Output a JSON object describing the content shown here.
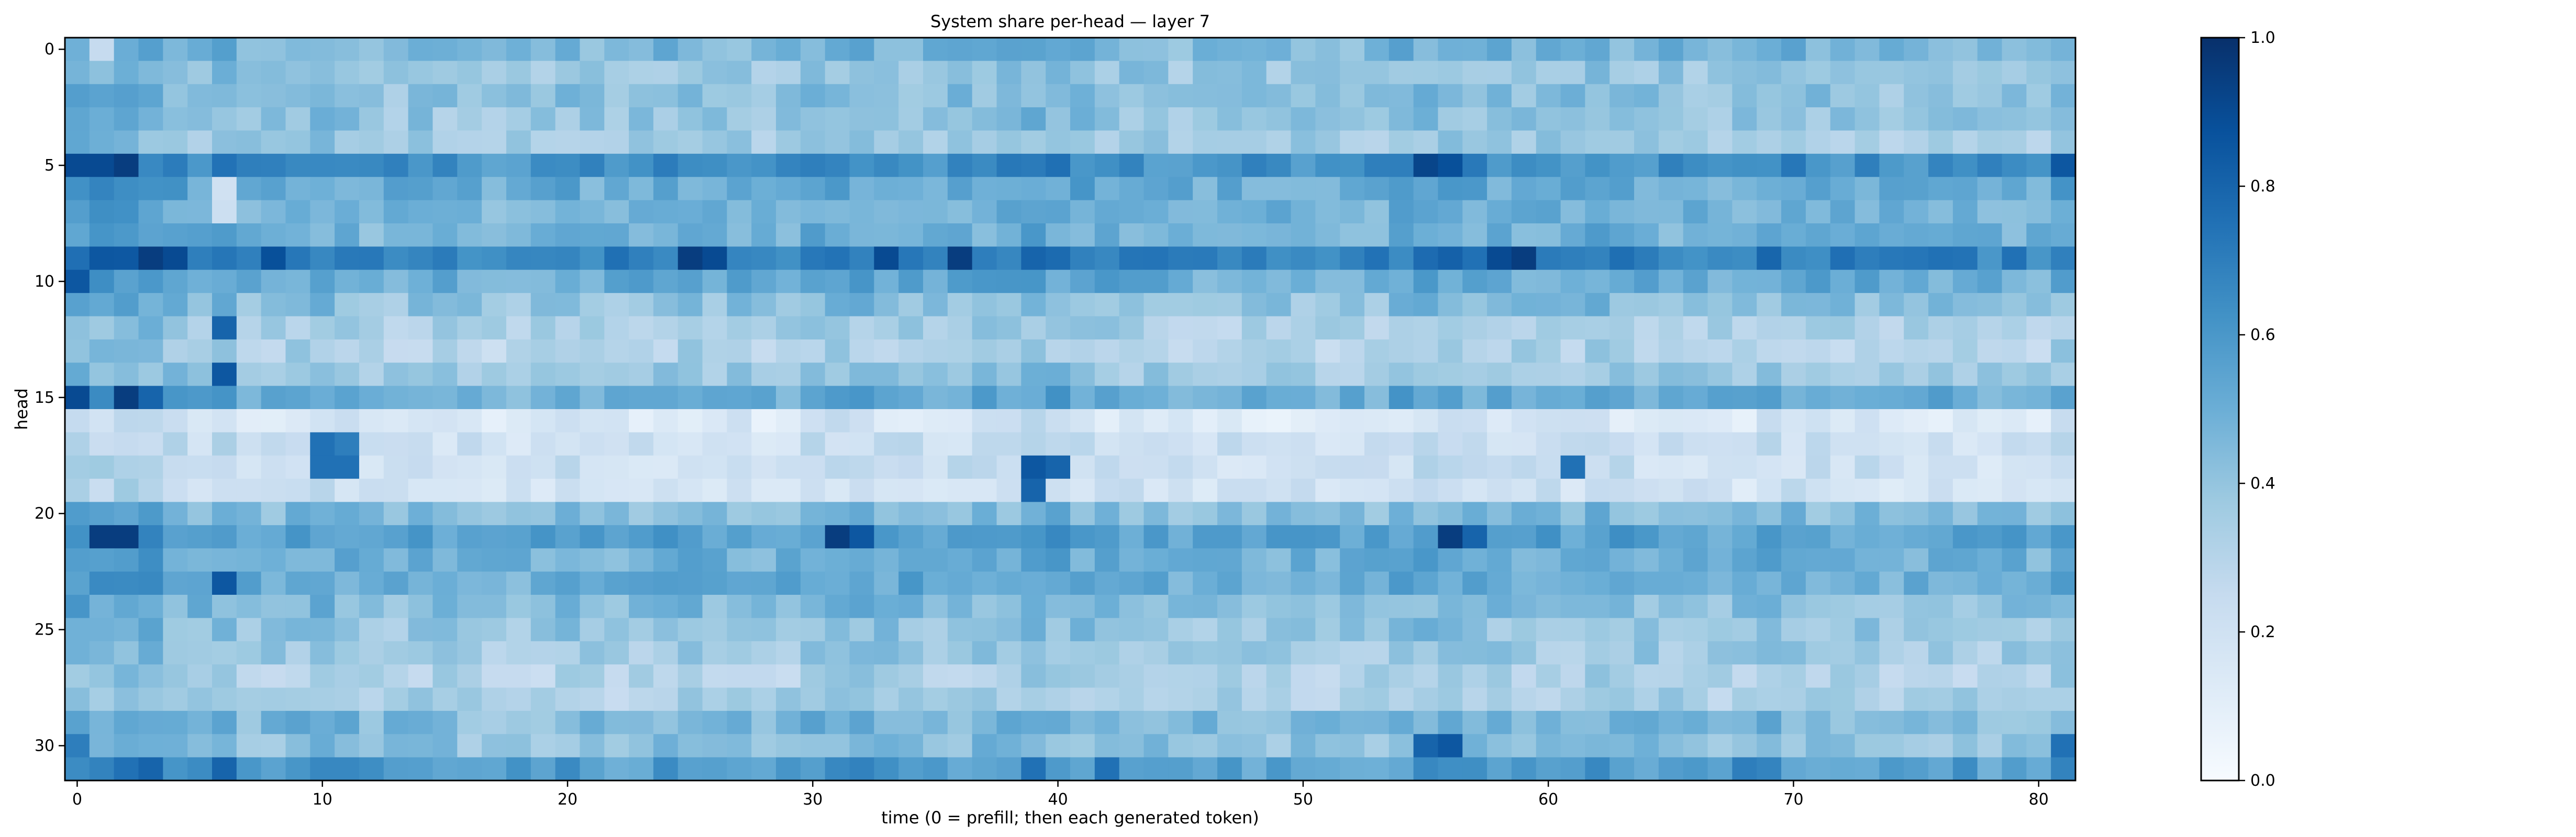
{
  "chart_data": {
    "type": "heatmap",
    "title": "System share per-head — layer 7",
    "xlabel": "time (0 = prefill; then each generated token)",
    "ylabel": "head",
    "x_range": [
      0,
      81
    ],
    "y_range": [
      0,
      31
    ],
    "x_ticks": [
      "0",
      "10",
      "20",
      "30",
      "40",
      "50",
      "60",
      "70",
      "80"
    ],
    "y_ticks": [
      "0",
      "5",
      "10",
      "15",
      "20",
      "25",
      "30"
    ],
    "colorbar": {
      "range": [
        0.0,
        1.0
      ],
      "ticks": [
        "0.0",
        "0.2",
        "0.4",
        "0.6",
        "0.8",
        "1.0"
      ],
      "colormap": "Blues",
      "stops": [
        "#f7fbff",
        "#deebf7",
        "#c6dbef",
        "#9ecae1",
        "#6baed6",
        "#4292c6",
        "#2171b5",
        "#08519c",
        "#08306b"
      ]
    },
    "legend": "colorbar on right",
    "grid": false,
    "n_heads": 32,
    "n_steps": 82,
    "row_mean_values": [
      0.45,
      0.38,
      0.4,
      0.38,
      0.35,
      0.62,
      0.5,
      0.47,
      0.46,
      0.68,
      0.5,
      0.4,
      0.32,
      0.3,
      0.36,
      0.5,
      0.14,
      0.2,
      0.2,
      0.18,
      0.42,
      0.54,
      0.48,
      0.5,
      0.42,
      0.38,
      0.35,
      0.3,
      0.32,
      0.44,
      0.4,
      0.56
    ],
    "column_offsets": [
      0.12,
      0.1,
      0.12,
      0.1,
      0.06,
      0.04,
      0.06,
      0.0,
      0.02,
      0.04,
      0.05,
      0.03,
      0.0,
      0.0,
      0.02,
      0.01,
      0.0,
      -0.02,
      -0.01,
      0.0,
      0.02,
      0.0,
      0.0,
      0.01,
      0.02,
      0.03,
      0.02,
      0.01,
      0.0,
      0.01,
      0.06,
      0.05,
      0.05,
      0.04,
      0.03,
      0.02,
      0.03,
      0.04,
      0.03,
      0.08,
      0.06,
      0.04,
      0.03,
      0.02,
      0.01,
      0.0,
      0.0,
      0.01,
      0.0,
      0.0,
      0.0,
      0.0,
      0.0,
      0.01,
      0.04,
      0.05,
      0.06,
      0.03,
      0.02,
      0.02,
      0.02,
      0.02,
      0.05,
      0.03,
      0.02,
      0.02,
      0.01,
      0.01,
      0.0,
      0.04,
      0.03,
      0.02,
      0.01,
      0.01,
      0.0,
      0.01,
      0.01,
      0.01,
      0.0,
      0.01,
      0.0,
      0.05
    ],
    "hot_cells": [
      [
        5,
        0,
        0.9
      ],
      [
        5,
        1,
        0.9
      ],
      [
        5,
        2,
        0.95
      ],
      [
        5,
        56,
        0.88
      ],
      [
        5,
        55,
        0.92
      ],
      [
        5,
        81,
        0.85
      ],
      [
        9,
        3,
        0.95
      ],
      [
        9,
        4,
        0.9
      ],
      [
        9,
        8,
        0.88
      ],
      [
        9,
        25,
        0.95
      ],
      [
        9,
        26,
        0.9
      ],
      [
        9,
        36,
        0.95
      ],
      [
        9,
        59,
        0.95
      ],
      [
        9,
        58,
        0.9
      ],
      [
        9,
        33,
        0.9
      ],
      [
        10,
        0,
        0.85
      ],
      [
        15,
        0,
        0.9
      ],
      [
        15,
        2,
        0.95
      ],
      [
        15,
        3,
        0.8
      ],
      [
        14,
        6,
        0.85
      ],
      [
        12,
        6,
        0.8
      ],
      [
        17,
        10,
        0.75
      ],
      [
        18,
        10,
        0.75
      ],
      [
        18,
        11,
        0.75
      ],
      [
        17,
        11,
        0.7
      ],
      [
        18,
        39,
        0.85
      ],
      [
        18,
        40,
        0.8
      ],
      [
        19,
        39,
        0.8
      ],
      [
        18,
        61,
        0.75
      ],
      [
        21,
        1,
        0.95
      ],
      [
        21,
        2,
        0.95
      ],
      [
        21,
        31,
        0.95
      ],
      [
        21,
        32,
        0.85
      ],
      [
        21,
        56,
        0.95
      ],
      [
        21,
        57,
        0.8
      ],
      [
        23,
        6,
        0.85
      ],
      [
        30,
        0,
        0.7
      ],
      [
        30,
        55,
        0.8
      ],
      [
        30,
        56,
        0.85
      ],
      [
        30,
        81,
        0.75
      ],
      [
        31,
        3,
        0.8
      ],
      [
        31,
        6,
        0.8
      ],
      [
        31,
        39,
        0.75
      ],
      [
        31,
        42,
        0.75
      ],
      [
        31,
        68,
        0.7
      ]
    ],
    "cold_cells": [
      [
        0,
        1,
        0.25
      ],
      [
        6,
        6,
        0.2
      ],
      [
        7,
        6,
        0.22
      ],
      [
        3,
        15,
        0.3
      ],
      [
        27,
        17,
        0.25
      ],
      [
        27,
        18,
        0.25
      ],
      [
        27,
        22,
        0.25
      ],
      [
        28,
        54,
        0.3
      ]
    ]
  }
}
